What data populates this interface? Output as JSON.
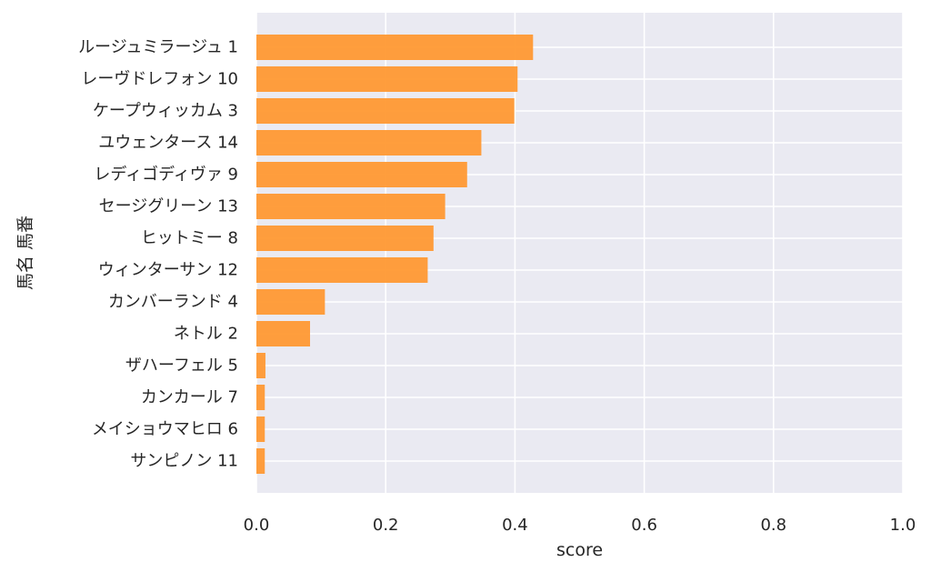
{
  "chart_data": {
    "type": "bar",
    "orientation": "horizontal",
    "categories": [
      "ルージュミラージュ 1",
      "レーヴドレフォン 10",
      "ケープウィッカム 3",
      "ユウェンタース 14",
      "レディゴディヴァ 9",
      "セージグリーン 13",
      "ヒットミー 8",
      "ウィンターサン 12",
      "カンバーランド 4",
      "ネトル 2",
      "ザハーフェル 5",
      "カンカール 7",
      "メイショウマヒロ 6",
      "サンピノン 11"
    ],
    "values": [
      0.428,
      0.404,
      0.399,
      0.348,
      0.326,
      0.292,
      0.274,
      0.265,
      0.106,
      0.083,
      0.014,
      0.013,
      0.013,
      0.013
    ],
    "xlabel": "score",
    "ylabel": "馬名 馬番",
    "xlim": [
      0,
      1.0
    ],
    "xticks": [
      "0.0",
      "0.2",
      "0.4",
      "0.6",
      "0.8",
      "1.0"
    ],
    "grid": true,
    "colors": {
      "bar": "#ff9933",
      "background": "#eaeaf2",
      "grid": "#ffffff",
      "text": "#262626"
    }
  }
}
